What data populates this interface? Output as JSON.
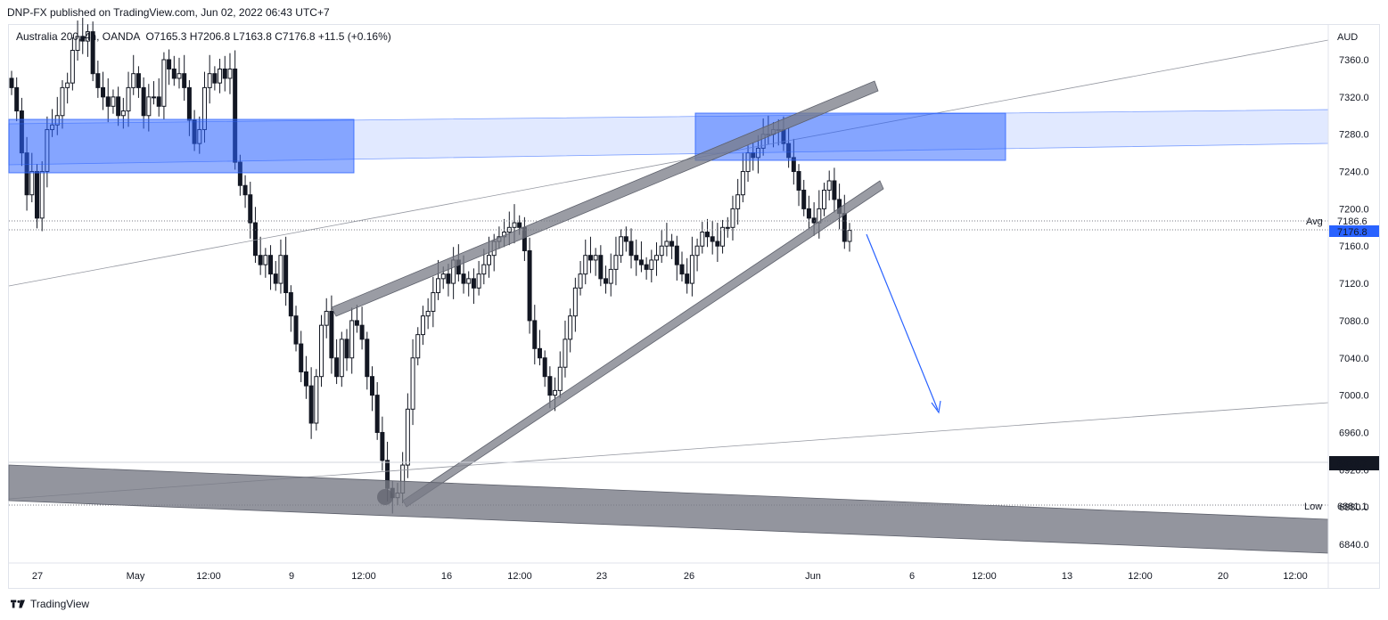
{
  "header": {
    "publisher_line": "DNP-FX published on TradingView.com, Jun 02, 2022 06:43 UTC+7"
  },
  "legend": {
    "symbol": "Australia 200",
    "interval": "4h",
    "exchange": "OANDA",
    "ohlc": "O7165.3  H7206.8  L7163.8  C7176.8  +11.5 (+0.16%)"
  },
  "footer": {
    "brand": "TradingView",
    "logo_icon": "tradingview-logo-icon"
  },
  "colors": {
    "candle": "#131722",
    "zone_fill": "#2962ff",
    "channel_fill": "#787b86",
    "arrow": "#2962ff",
    "current_price_bg": "#2962ff",
    "last_price_bg": "#131722"
  },
  "chart_data": {
    "type": "candlestick",
    "currency": "AUD",
    "ylim": [
      6820,
      7390
    ],
    "y_ticks": [
      6840,
      6880,
      6920,
      6960,
      7000,
      7040,
      7080,
      7120,
      7160,
      7200,
      7240,
      7280,
      7320,
      7360
    ],
    "x_ticks": [
      "27",
      "May",
      "12:00",
      "9",
      "12:00",
      "16",
      "12:00",
      "23",
      "26",
      "Jun",
      "6",
      "12:00",
      "13",
      "12:00",
      "20",
      "12:00"
    ],
    "axis_labels": {
      "avg_label": "Avg",
      "avg_value": "7186.6",
      "current_value": "7176.8",
      "box_value": "6926.7",
      "low_label": "Low",
      "low_value": "6881.1"
    },
    "closes": [
      7330,
      7305,
      7260,
      7215,
      7240,
      7190,
      7240,
      7285,
      7290,
      7300,
      7330,
      7335,
      7370,
      7385,
      7380,
      7390,
      7345,
      7330,
      7320,
      7310,
      7320,
      7300,
      7305,
      7330,
      7345,
      7330,
      7300,
      7320,
      7320,
      7310,
      7360,
      7350,
      7340,
      7345,
      7330,
      7295,
      7270,
      7285,
      7330,
      7345,
      7335,
      7350,
      7340,
      7350,
      7250,
      7225,
      7215,
      7185,
      7150,
      7140,
      7150,
      7130,
      7120,
      7150,
      7110,
      7085,
      7055,
      7025,
      7010,
      6970,
      7020,
      7075,
      7090,
      7040,
      7020,
      7060,
      7040,
      7080,
      7075,
      7060,
      7020,
      7000,
      6960,
      6930,
      6900,
      6890,
      6895,
      6925,
      6985,
      7040,
      7065,
      7085,
      7090,
      7110,
      7125,
      7130,
      7120,
      7145,
      7130,
      7120,
      7125,
      7115,
      7130,
      7140,
      7150,
      7165,
      7170,
      7175,
      7180,
      7185,
      7180,
      7155,
      7080,
      7050,
      7040,
      7020,
      7000,
      7005,
      7030,
      7060,
      7085,
      7115,
      7130,
      7150,
      7145,
      7150,
      7125,
      7120,
      7135,
      7150,
      7170,
      7165,
      7150,
      7145,
      7140,
      7135,
      7145,
      7150,
      7160,
      7165,
      7160,
      7140,
      7130,
      7120,
      7150,
      7160,
      7175,
      7170,
      7165,
      7160,
      7180,
      7180,
      7200,
      7215,
      7240,
      7260,
      7255,
      7265,
      7280,
      7280,
      7285,
      7285,
      7270,
      7255,
      7240,
      7220,
      7200,
      7190,
      7185,
      7200,
      7220,
      7230,
      7210,
      7195,
      7165,
      7176.8
    ],
    "annotations": [
      {
        "type": "zone",
        "name": "resistance-zone-left",
        "from": [
          7260,
          7275
        ],
        "to": [
          7235,
          7300
        ]
      },
      {
        "type": "zone",
        "name": "resistance-zone-right",
        "from": [
          7250,
          7300
        ],
        "to": [
          7270,
          7310
        ]
      },
      {
        "type": "channel",
        "name": "rising-wedge-upper"
      },
      {
        "type": "channel",
        "name": "rising-wedge-lower"
      },
      {
        "type": "channel",
        "name": "support-channel-bottom"
      },
      {
        "type": "arrow",
        "name": "projection-arrow",
        "direction": "down"
      }
    ]
  }
}
